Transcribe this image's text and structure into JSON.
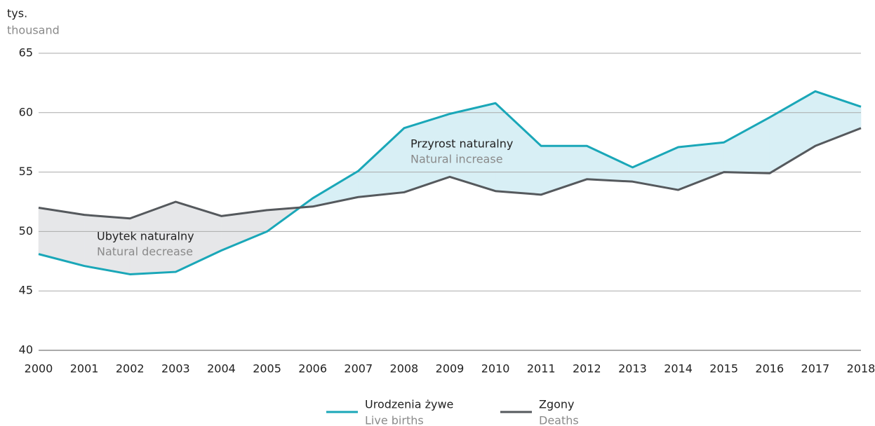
{
  "chart_data": {
    "type": "line",
    "unit": "tys.",
    "unit_en": "thousand",
    "x": [
      2000,
      2001,
      2002,
      2003,
      2004,
      2005,
      2006,
      2007,
      2008,
      2009,
      2010,
      2011,
      2012,
      2013,
      2014,
      2015,
      2016,
      2017,
      2018
    ],
    "series": [
      {
        "name": "Urodzenia żywe",
        "name_en": "Live births",
        "color": "#1aa7b8",
        "values": [
          48.1,
          47.1,
          46.4,
          46.6,
          48.4,
          50.0,
          52.8,
          55.1,
          58.7,
          59.9,
          60.8,
          57.2,
          57.2,
          55.4,
          57.1,
          57.5,
          59.6,
          61.8,
          60.5
        ]
      },
      {
        "name": "Zgony",
        "name_en": "Deaths",
        "color": "#55595d",
        "values": [
          52.0,
          51.4,
          51.1,
          52.5,
          51.3,
          51.8,
          52.1,
          52.9,
          53.3,
          54.6,
          53.4,
          53.1,
          54.4,
          54.2,
          53.5,
          55.0,
          54.9,
          57.2,
          58.7
        ]
      }
    ],
    "fill_increase_color": "#d8eff5",
    "fill_decrease_color": "#e6e7e9",
    "annotations": [
      {
        "text": "Ubytek naturalny",
        "text_en": "Natural decrease"
      },
      {
        "text": "Przyrost naturalny",
        "text_en": "Natural increase"
      }
    ],
    "xlim": [
      2000,
      2018
    ],
    "xticks": [
      2000,
      2001,
      2002,
      2003,
      2004,
      2005,
      2006,
      2007,
      2008,
      2009,
      2010,
      2011,
      2012,
      2013,
      2014,
      2015,
      2016,
      2017,
      2018
    ],
    "ylim": [
      40,
      65
    ],
    "yticks": [
      40,
      45,
      50,
      55,
      60,
      65
    ],
    "grid": true
  }
}
